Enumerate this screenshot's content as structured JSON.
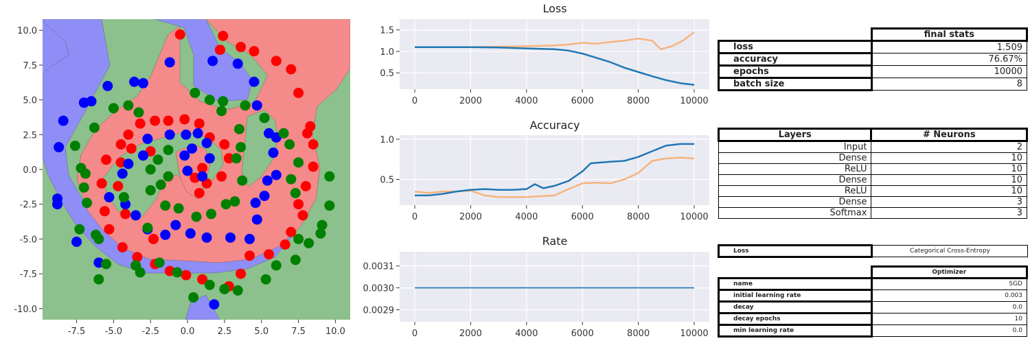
{
  "chart_data": [
    {
      "type": "scatter",
      "title": "",
      "xlabel": "",
      "ylabel": "",
      "xlim": [
        -9.8,
        11.0
      ],
      "ylim": [
        -10.8,
        10.8
      ],
      "xticks": [
        "-7.5",
        "-5.0",
        "-2.5",
        "0.0",
        "2.5",
        "5.0",
        "7.5",
        "10.0"
      ],
      "yticks": [
        "10.0",
        "7.5",
        "5.0",
        "2.5",
        "0.0",
        "-2.5",
        "-5.0",
        "-7.5",
        "-10.0"
      ],
      "background_regions": "decision regions for 3 classes",
      "colors": {
        "class_0": "#ff0000",
        "class_1": "#0000ff",
        "class_2": "#008000",
        "region_0": "#f48a8a",
        "region_1": "#8e8ef6",
        "region_2": "#8cc08c"
      },
      "series": [
        {
          "color": "#ff0000",
          "points": [
            [
              -0.5,
              9.7
            ],
            [
              2.4,
              9.6
            ],
            [
              2.2,
              8.6
            ],
            [
              3.6,
              8.8
            ],
            [
              4.5,
              8.5
            ],
            [
              6,
              7.8
            ],
            [
              7,
              7.2
            ],
            [
              7.5,
              5.5
            ],
            [
              8.3,
              3.1
            ],
            [
              8.1,
              2.6
            ],
            [
              8.5,
              1.8
            ],
            [
              8.5,
              0.2
            ],
            [
              8.0,
              -1.2
            ],
            [
              7.5,
              -2.5
            ],
            [
              7.8,
              -3.3
            ],
            [
              7.0,
              -4.5
            ],
            [
              6.6,
              -5.4
            ],
            [
              5.5,
              -6.1
            ],
            [
              4.2,
              -6.2
            ],
            [
              3.6,
              -7.5
            ],
            [
              2.8,
              -8.4
            ],
            [
              1.0,
              -7.9
            ],
            [
              -0.1,
              -7.6
            ],
            [
              -1.2,
              -7.3
            ],
            [
              -2.2,
              -6.8
            ],
            [
              -3.4,
              -6.3
            ],
            [
              -4.4,
              -5.6
            ],
            [
              -5.3,
              -4.3
            ],
            [
              -5.6,
              -3.0
            ],
            [
              -5.8,
              -1.0
            ],
            [
              -5.5,
              0.7
            ],
            [
              -4.5,
              1.8
            ],
            [
              -4.0,
              2.5
            ],
            [
              -3.2,
              3.3
            ],
            [
              -2.2,
              3.5
            ],
            [
              -1.3,
              3.5
            ],
            [
              -0.2,
              3.6
            ],
            [
              0.8,
              3.3
            ],
            [
              1.5,
              2.3
            ],
            [
              2.5,
              1.8
            ],
            [
              2.8,
              0.8
            ],
            [
              2.3,
              -0.5
            ],
            [
              1.3,
              -1.0
            ],
            [
              0.8,
              -1.7
            ],
            [
              1.0,
              0.1
            ],
            [
              0.5,
              -0.6
            ],
            [
              -2.5,
              1.3
            ],
            [
              -3.8,
              1.5
            ],
            [
              -4.5,
              0.5
            ],
            [
              -4.7,
              -1.2
            ],
            [
              -4.2,
              -3.2
            ],
            [
              -2.3,
              -5.0
            ]
          ]
        },
        {
          "color": "#0000ff",
          "points": [
            [
              -8.4,
              3.5
            ],
            [
              -8.7,
              1.6
            ],
            [
              -7.0,
              4.8
            ],
            [
              -6.5,
              4.9
            ],
            [
              -5.4,
              6.0
            ],
            [
              -3.6,
              6.3
            ],
            [
              -3.0,
              6.2
            ],
            [
              -1.2,
              7.7
            ],
            [
              1.7,
              7.8
            ],
            [
              3.4,
              7.6
            ],
            [
              4.5,
              6.3
            ],
            [
              4.7,
              4.6
            ],
            [
              5.5,
              2.6
            ],
            [
              6,
              2.3
            ],
            [
              5.8,
              1.2
            ],
            [
              6.0,
              -0.4
            ],
            [
              5.4,
              -0.8
            ],
            [
              5.2,
              -1.9
            ],
            [
              4.6,
              -2.4
            ],
            [
              4.7,
              -3.6
            ],
            [
              4.2,
              -5.0
            ],
            [
              2.9,
              -4.9
            ],
            [
              1.3,
              -4.9
            ],
            [
              0.2,
              -4.6
            ],
            [
              -0.8,
              -4.0
            ],
            [
              -1.5,
              -4.7
            ],
            [
              -2.7,
              -4.3
            ],
            [
              -3.5,
              -3.3
            ],
            [
              -4.2,
              -2.5
            ],
            [
              -5.3,
              -2.0
            ],
            [
              -4.4,
              -0.3
            ],
            [
              -4.0,
              0.4
            ],
            [
              -3.0,
              1.0
            ],
            [
              -2.7,
              2.2
            ],
            [
              -1.2,
              2.5
            ],
            [
              -0.1,
              2.5
            ],
            [
              0.7,
              2.6
            ],
            [
              1.3,
              1.9
            ],
            [
              1.5,
              0.8
            ],
            [
              1.0,
              -0.5
            ],
            [
              0.0,
              -0.1
            ],
            [
              -0.2,
              1.0
            ],
            [
              0.3,
              1.5
            ],
            [
              -8.8,
              -2.1
            ],
            [
              -8.8,
              -2.5
            ],
            [
              -7.5,
              -5.2
            ],
            [
              -6.0,
              -6.7
            ],
            [
              1.8,
              -9.7
            ]
          ]
        },
        {
          "color": "#008000",
          "points": [
            [
              -7.2,
              0.1
            ],
            [
              -6.9,
              -0.3
            ],
            [
              -7.0,
              -1.3
            ],
            [
              -6.8,
              -2.4
            ],
            [
              -7.3,
              -4.3
            ],
            [
              -6.2,
              -4.7
            ],
            [
              -6.0,
              -5.0
            ],
            [
              -5.5,
              -6.8
            ],
            [
              -6.0,
              -7.9
            ],
            [
              -3.5,
              -6.9
            ],
            [
              -3.2,
              -7.4
            ],
            [
              -1.9,
              -6.7
            ],
            [
              -0.7,
              -7.4
            ],
            [
              0.4,
              -9.2
            ],
            [
              1.5,
              -8.3
            ],
            [
              2.5,
              -8.6
            ],
            [
              3.4,
              -8.7
            ],
            [
              5.3,
              -7.9
            ],
            [
              6.0,
              -6.9
            ],
            [
              7.3,
              -6.5
            ],
            [
              7.5,
              -5.0
            ],
            [
              8.2,
              -5.3
            ],
            [
              9.0,
              -4.6
            ],
            [
              9.1,
              -4.0
            ],
            [
              9.6,
              -2.6
            ],
            [
              9.6,
              -0.5
            ],
            [
              7.3,
              -1.7
            ],
            [
              7.0,
              -0.7
            ],
            [
              7.5,
              0.5
            ],
            [
              6.9,
              1.8
            ],
            [
              6.5,
              2.6
            ],
            [
              5.2,
              3.7
            ],
            [
              3.9,
              4.6
            ],
            [
              2.4,
              4.9
            ],
            [
              1.5,
              5.0
            ],
            [
              0.5,
              5.5
            ],
            [
              2.3,
              4.2
            ],
            [
              3.5,
              2.9
            ],
            [
              3.6,
              1.6
            ],
            [
              3.3,
              0.8
            ],
            [
              3.7,
              -0.8
            ],
            [
              3.2,
              -2.3
            ],
            [
              2.6,
              -2.5
            ],
            [
              1.6,
              -3.2
            ],
            [
              0.6,
              -3.4
            ],
            [
              -0.6,
              -2.8
            ],
            [
              -1.5,
              -2.6
            ],
            [
              -2.5,
              -1.5
            ],
            [
              -2.5,
              0.0
            ],
            [
              -2.0,
              0.7
            ],
            [
              -1.3,
              1.4
            ],
            [
              -1.8,
              -1.1
            ],
            [
              -1.3,
              -0.5
            ],
            [
              -3.3,
              4.1
            ],
            [
              -4.0,
              4.6
            ],
            [
              -5.0,
              4.4
            ],
            [
              -6.3,
              3.0
            ],
            [
              -7.6,
              1.7
            ],
            [
              -2.7,
              -4.2
            ],
            [
              -4.3,
              -2.0
            ]
          ]
        }
      ]
    },
    {
      "type": "line",
      "title": "Loss",
      "xlim": [
        0,
        10000
      ],
      "ylim": [
        0.12,
        1.75
      ],
      "xticks": [
        "0",
        "2000",
        "4000",
        "6000",
        "8000",
        "10000"
      ],
      "yticks": [
        "1.5",
        "1.0",
        "0.5"
      ],
      "series": [
        {
          "color": "#1f77b4",
          "x": [
            0,
            2000,
            3000,
            4000,
            5000,
            5500,
            6000,
            6500,
            7000,
            7500,
            8000,
            8500,
            9000,
            9500,
            10000
          ],
          "y": [
            1.1,
            1.1,
            1.09,
            1.07,
            1.05,
            1.02,
            0.95,
            0.85,
            0.75,
            0.62,
            0.52,
            0.42,
            0.33,
            0.26,
            0.22
          ]
        },
        {
          "color": "#f5b37f",
          "x": [
            0,
            2000,
            3000,
            4000,
            5000,
            5500,
            6000,
            6500,
            7000,
            7500,
            8000,
            8500,
            8800,
            9200,
            9600,
            10000
          ],
          "y": [
            1.1,
            1.1,
            1.11,
            1.12,
            1.14,
            1.16,
            1.2,
            1.18,
            1.22,
            1.25,
            1.3,
            1.25,
            1.05,
            1.12,
            1.25,
            1.45
          ]
        }
      ]
    },
    {
      "type": "line",
      "title": "Accuracy",
      "xlim": [
        0,
        10000
      ],
      "ylim": [
        0.18,
        1.05
      ],
      "xticks": [
        "0",
        "2000",
        "4000",
        "6000",
        "8000",
        "10000"
      ],
      "yticks": [
        "1.0",
        "0.5"
      ],
      "series": [
        {
          "color": "#1f77b4",
          "x": [
            0,
            500,
            1000,
            1500,
            2000,
            2500,
            3000,
            3500,
            4000,
            4300,
            4600,
            5000,
            5500,
            6000,
            6300,
            7000,
            7500,
            8000,
            8500,
            9000,
            9500,
            10000
          ],
          "y": [
            0.3,
            0.3,
            0.32,
            0.35,
            0.37,
            0.38,
            0.37,
            0.37,
            0.38,
            0.44,
            0.39,
            0.42,
            0.48,
            0.6,
            0.7,
            0.72,
            0.73,
            0.78,
            0.85,
            0.92,
            0.94,
            0.94
          ]
        },
        {
          "color": "#f5b37f",
          "x": [
            0,
            500,
            1000,
            1500,
            2000,
            2500,
            3000,
            3500,
            4000,
            4500,
            5000,
            5500,
            6000,
            6500,
            7000,
            7500,
            8000,
            8500,
            9000,
            9500,
            10000
          ],
          "y": [
            0.35,
            0.33,
            0.35,
            0.35,
            0.36,
            0.3,
            0.28,
            0.28,
            0.28,
            0.29,
            0.3,
            0.38,
            0.45,
            0.46,
            0.45,
            0.5,
            0.58,
            0.73,
            0.76,
            0.77,
            0.76
          ]
        }
      ]
    },
    {
      "type": "line",
      "title": "Rate",
      "xlim": [
        0,
        10000
      ],
      "ylim": [
        0.002845,
        0.003165
      ],
      "xticks": [
        "0",
        "2000",
        "4000",
        "6000",
        "8000",
        "10000"
      ],
      "yticks": [
        "0.0031",
        "0.0030",
        "0.0029"
      ],
      "series": [
        {
          "color": "#1f77b4",
          "x": [
            0,
            10000
          ],
          "y": [
            0.003,
            0.003
          ]
        }
      ]
    }
  ],
  "stats": {
    "header": "final stats",
    "rows": [
      {
        "label": "loss",
        "value": "1.509"
      },
      {
        "label": "accuracy",
        "value": "76.67%"
      },
      {
        "label": "epochs",
        "value": "10000"
      },
      {
        "label": "batch size",
        "value": "8"
      }
    ]
  },
  "layers": {
    "col1": "Layers",
    "col2": "# Neurons",
    "rows": [
      {
        "name": "Input",
        "n": "2"
      },
      {
        "name": "Dense",
        "n": "10"
      },
      {
        "name": "ReLU",
        "n": "10"
      },
      {
        "name": "Dense",
        "n": "10"
      },
      {
        "name": "ReLU",
        "n": "10"
      },
      {
        "name": "Dense",
        "n": "3"
      },
      {
        "name": "Softmax",
        "n": "3"
      }
    ]
  },
  "loss_fn": {
    "label": "Loss",
    "value": "Categorical Cross-Entropy"
  },
  "optimizer": {
    "header": "Optimizer",
    "rows": [
      {
        "label": "name",
        "value": "SGD"
      },
      {
        "label": "initial learning rate",
        "value": "0.003"
      },
      {
        "label": "decay",
        "value": "0.0"
      },
      {
        "label": "decay epochs",
        "value": "10"
      },
      {
        "label": "min learning rate",
        "value": "0.0"
      }
    ]
  }
}
